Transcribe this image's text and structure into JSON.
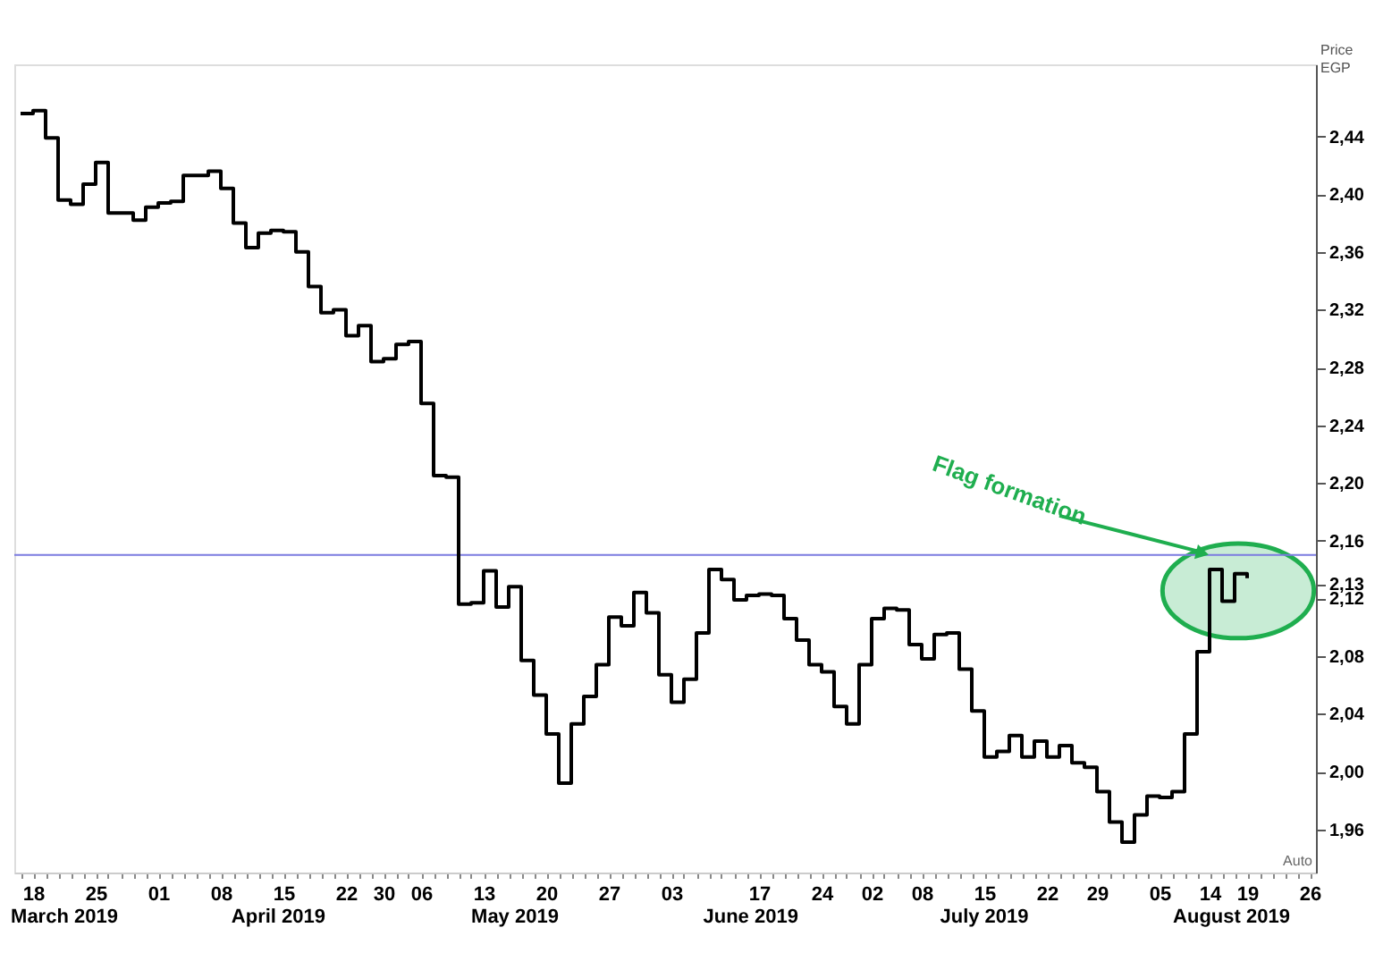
{
  "chart_data": {
    "type": "step",
    "ylabel": "Price\nEGP",
    "categories": [
      null,
      "18",
      null,
      null,
      null,
      null,
      "25",
      null,
      null,
      null,
      null,
      "01",
      null,
      null,
      null,
      null,
      "08",
      null,
      null,
      null,
      null,
      "15",
      null,
      null,
      null,
      null,
      "22",
      null,
      null,
      "30",
      null,
      null,
      "06",
      null,
      null,
      null,
      null,
      "13",
      null,
      null,
      null,
      null,
      "20",
      null,
      null,
      null,
      null,
      "27",
      null,
      null,
      null,
      null,
      "03",
      null,
      null,
      null,
      null,
      null,
      null,
      "17",
      null,
      null,
      null,
      null,
      "24",
      null,
      null,
      null,
      "02",
      null,
      null,
      null,
      "08",
      null,
      null,
      null,
      null,
      "15",
      null,
      null,
      null,
      null,
      "22",
      null,
      null,
      null,
      "29",
      null,
      null,
      null,
      null,
      "05",
      null,
      null,
      null,
      "14",
      null,
      null,
      "19",
      null,
      null,
      null,
      null,
      "26"
    ],
    "series": [
      {
        "color": "#000000",
        "values": [
          2.456,
          2.458,
          2.439,
          2.396,
          2.393,
          2.407,
          2.422,
          2.387,
          2.387,
          2.382,
          2.391,
          2.394,
          2.395,
          2.413,
          2.413,
          2.416,
          2.404,
          2.38,
          2.363,
          2.373,
          2.375,
          2.374,
          2.36,
          2.336,
          2.318,
          2.32,
          2.302,
          2.309,
          2.284,
          2.286,
          2.296,
          2.298,
          2.255,
          2.205,
          2.204,
          2.116,
          2.117,
          2.139,
          2.114,
          2.128,
          2.077,
          2.053,
          2.026,
          1.992,
          2.033,
          2.052,
          2.074,
          2.107,
          2.101,
          2.124,
          2.11,
          2.067,
          2.048,
          2.064,
          2.096,
          2.14,
          2.133,
          2.119,
          2.122,
          2.123,
          2.122,
          2.106,
          2.091,
          2.074,
          2.069,
          2.045,
          2.033,
          2.074,
          2.106,
          2.113,
          2.112,
          2.088,
          2.078,
          2.095,
          2.096,
          2.071,
          2.042,
          2.01,
          2.014,
          2.025,
          2.01,
          2.021,
          2.01,
          2.018,
          2.006,
          2.003,
          1.986,
          1.965,
          1.951,
          1.97,
          1.983,
          1.982,
          1.986,
          2.026,
          2.083,
          2.14,
          2.118,
          2.137,
          2.134,
          null,
          null,
          null,
          null,
          null
        ]
      }
    ],
    "ylim": [
      1.93,
      2.49
    ],
    "yticks": [
      {
        "value": 1.96,
        "label": "1,96"
      },
      {
        "value": 2.0,
        "label": "2,00"
      },
      {
        "value": 2.04,
        "label": "2,04"
      },
      {
        "value": 2.08,
        "label": "2,08"
      },
      {
        "value": 2.12,
        "label": "2,12"
      },
      {
        "value": 2.13,
        "label": "2,13"
      },
      {
        "value": 2.16,
        "label": "2,16"
      },
      {
        "value": 2.2,
        "label": "2,20"
      },
      {
        "value": 2.24,
        "label": "2,24"
      },
      {
        "value": 2.28,
        "label": "2,28"
      },
      {
        "value": 2.32,
        "label": "2,32"
      },
      {
        "value": 2.36,
        "label": "2,36"
      },
      {
        "value": 2.4,
        "label": "2,40"
      },
      {
        "value": 2.44,
        "label": "2,44"
      }
    ],
    "ref_lines": [
      {
        "axis": "y",
        "value": 2.15,
        "color": "#7b7be0"
      }
    ],
    "annotations": [
      "March 2019",
      "April 2019",
      "May 2019",
      "June 2019",
      "July 2019",
      "August 2019",
      {
        "text": "Flag formation",
        "x": "14",
        "y": 2.15
      },
      "Auto"
    ]
  }
}
